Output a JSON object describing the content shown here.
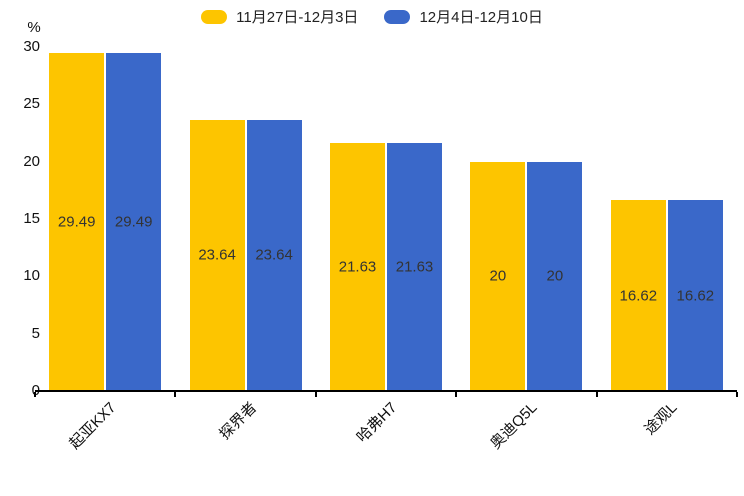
{
  "chart_data": {
    "type": "bar",
    "title": "",
    "unit_label": "%",
    "categories": [
      "起亚KX7",
      "探界者",
      "哈弗H7",
      "奥迪Q5L",
      "途观L"
    ],
    "series": [
      {
        "name": "11月27日-12月3日",
        "color": "#FDC500",
        "values": [
          29.49,
          23.64,
          21.63,
          20,
          16.62
        ]
      },
      {
        "name": "12月4日-12月10日",
        "color": "#3A68C9",
        "values": [
          29.49,
          23.64,
          21.63,
          20,
          16.62
        ]
      }
    ],
    "ylim": [
      0,
      30
    ],
    "yticks": [
      0,
      5,
      10,
      15,
      20,
      25,
      30
    ],
    "grid": false,
    "legend_position": "top",
    "value_labels": "inside-center",
    "x_label_rotation_deg": -45,
    "colors": {
      "axis": "#000000",
      "axis_text": "#111111",
      "value_label_text": "#333333",
      "legend_text": "#222222",
      "background": "#FFFFFF"
    }
  }
}
